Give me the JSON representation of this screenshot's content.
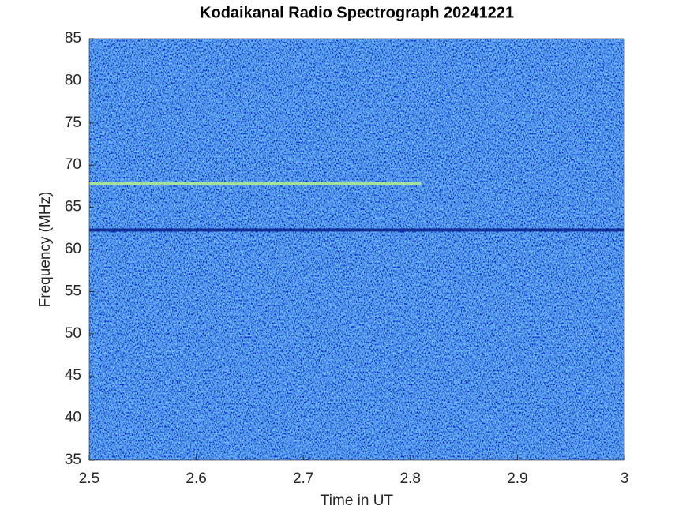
{
  "chart_data": {
    "type": "spectrogram",
    "title": "Kodaikanal Radio Spectrograph  20241221",
    "x_label": "Time in UT",
    "y_label": "Frequency (MHz)",
    "xlim": [
      2.5,
      3
    ],
    "xticks": [
      2.5,
      2.6,
      2.7,
      2.8,
      2.9,
      3
    ],
    "ylim": [
      35,
      85
    ],
    "yticks": [
      35,
      40,
      45,
      50,
      55,
      60,
      65,
      70,
      75,
      80,
      85
    ],
    "background_color": "#1f4fd8",
    "features": [
      {
        "x": [
          2.5,
          2.81
        ],
        "y": 67.8,
        "color": "#b4ee8c"
      },
      {
        "x": [
          2.5,
          3
        ],
        "y": 62.3,
        "color": "#0a1c86"
      }
    ]
  }
}
